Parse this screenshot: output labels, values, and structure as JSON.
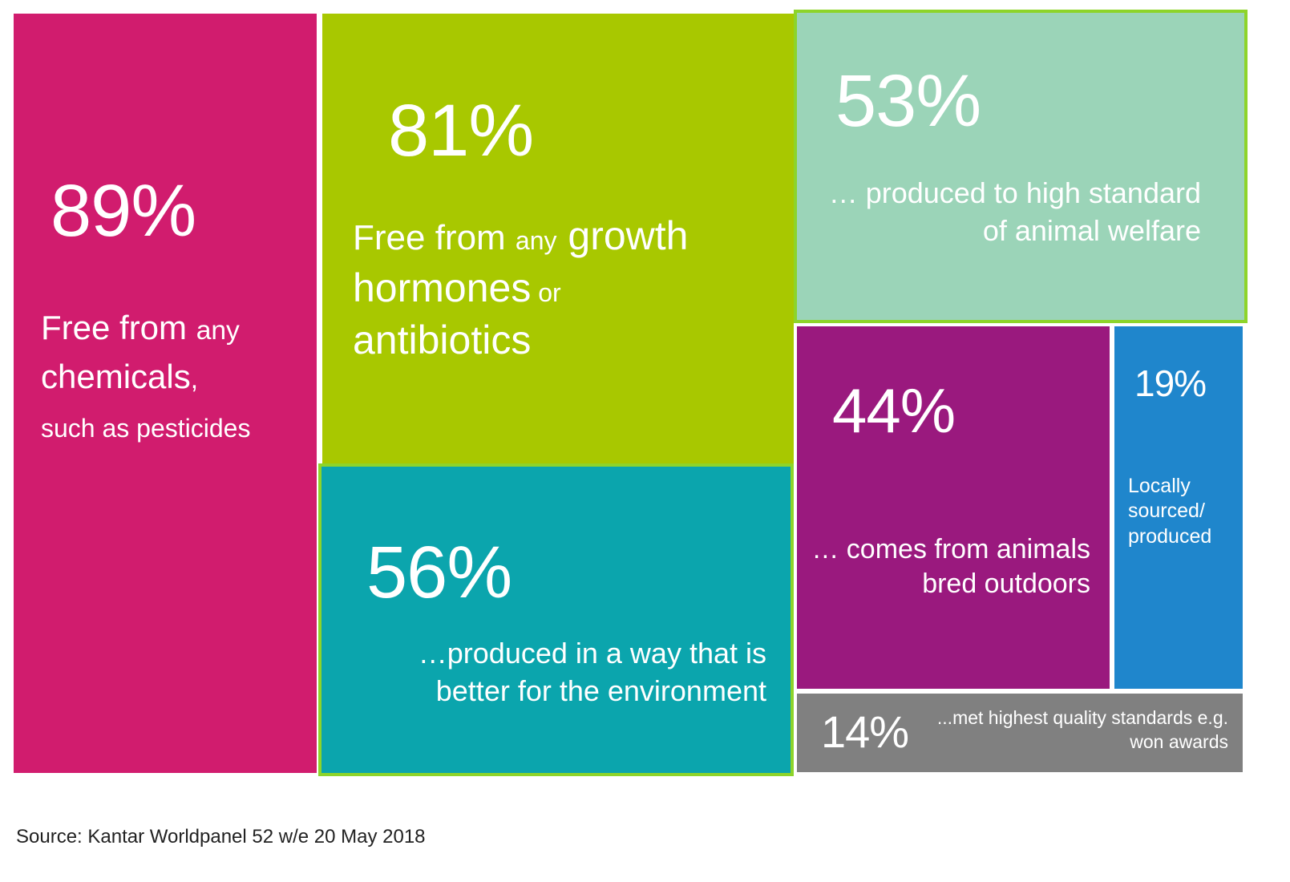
{
  "chart_data": {
    "type": "treemap",
    "items": [
      {
        "id": "t89",
        "value": 89,
        "label_pct": "89%",
        "text": {
          "a": "Free from ",
          "b": "any",
          "c": "chemicals",
          "d": ",",
          "e": "such as pesticides"
        },
        "color": "#d11c6e"
      },
      {
        "id": "t81",
        "value": 81,
        "label_pct": "81%",
        "text": {
          "a": "Free from ",
          "b": "any",
          "c": " growth",
          "d": "hormones",
          "e": " or",
          "f": "antibiotics"
        },
        "color": "#a8c800"
      },
      {
        "id": "t56",
        "value": 56,
        "label_pct": "56%",
        "text": {
          "a": "…produced in a way that is better for the environment"
        },
        "color": "#0ba5ad"
      },
      {
        "id": "t53",
        "value": 53,
        "label_pct": "53%",
        "text": {
          "a": "… produced to high standard of animal welfare"
        },
        "color": "#9bd4b8"
      },
      {
        "id": "t44",
        "value": 44,
        "label_pct": "44%",
        "text": {
          "a": "… comes from animals bred outdoors"
        },
        "color": "#9a197e"
      },
      {
        "id": "t19",
        "value": 19,
        "label_pct": "19%",
        "text": {
          "a": "Locally sourced/ produced"
        },
        "color": "#1f86cc"
      },
      {
        "id": "t14",
        "value": 14,
        "label_pct": "14%",
        "text": {
          "a": "...met highest quality standards e.g. won awards"
        },
        "color": "#808080"
      }
    ]
  },
  "source": "Source: Kantar Worldpanel 52 w/e 20 May 2018"
}
